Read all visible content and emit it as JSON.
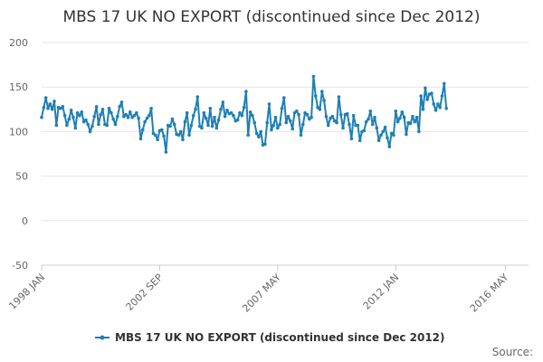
{
  "chart_data": {
    "type": "line",
    "title": "MBS 17 UK NO EXPORT (discontinued since Dec 2012)",
    "xlabel": "",
    "ylabel": "",
    "ylim": [
      -50,
      200
    ],
    "yticks": [
      -50,
      0,
      50,
      100,
      150,
      200
    ],
    "x_range": [
      1998.0,
      2017.25
    ],
    "xticks": [
      {
        "label": "1998 JAN",
        "value": 1998.0
      },
      {
        "label": "2002 SEP",
        "value": 2002.667
      },
      {
        "label": "2007 MAY",
        "value": 2007.333
      },
      {
        "label": "2012 JAN",
        "value": 2012.0
      },
      {
        "label": "2016 MAY",
        "value": 2016.333
      }
    ],
    "grid": true,
    "legend_position": "bottom-center",
    "series": [
      {
        "name": "MBS 17 UK NO EXPORT (discontinued since Dec 2012)",
        "color": "#1f7fb5",
        "start_year": 1998,
        "start_month": 1,
        "values": [
          116,
          127,
          138,
          126,
          131,
          125,
          134,
          107,
          127,
          126,
          128,
          118,
          107,
          114,
          124,
          116,
          104,
          121,
          118,
          122,
          111,
          113,
          108,
          100,
          106,
          117,
          128,
          108,
          119,
          125,
          108,
          107,
          126,
          121,
          114,
          108,
          117,
          128,
          133,
          117,
          119,
          116,
          122,
          116,
          118,
          121,
          115,
          92,
          102,
          111,
          115,
          118,
          126,
          98,
          96,
          91,
          101,
          102,
          95,
          77,
          107,
          106,
          114,
          108,
          97,
          96,
          100,
          91,
          111,
          121,
          96,
          107,
          118,
          125,
          139,
          106,
          104,
          121,
          115,
          107,
          126,
          106,
          116,
          104,
          113,
          125,
          133,
          117,
          124,
          120,
          121,
          118,
          112,
          113,
          121,
          118,
          127,
          145,
          96,
          122,
          118,
          110,
          98,
          94,
          100,
          85,
          86,
          110,
          131,
          102,
          107,
          116,
          104,
          108,
          126,
          138,
          110,
          117,
          112,
          103,
          121,
          123,
          119,
          96,
          108,
          121,
          119,
          114,
          116,
          162,
          140,
          127,
          125,
          145,
          135,
          117,
          107,
          115,
          117,
          112,
          110,
          139,
          119,
          104,
          119,
          120,
          108,
          92,
          118,
          107,
          107,
          90,
          100,
          101,
          111,
          114,
          123,
          108,
          116,
          104,
          90,
          96,
          100,
          105,
          93,
          83,
          98,
          96,
          123,
          111,
          115,
          122,
          116,
          97,
          110,
          109,
          117,
          111,
          116,
          100,
          140,
          125,
          149,
          136,
          142,
          143,
          131,
          124,
          131,
          127,
          140,
          154,
          126
        ]
      }
    ]
  },
  "source_label": "Source:"
}
